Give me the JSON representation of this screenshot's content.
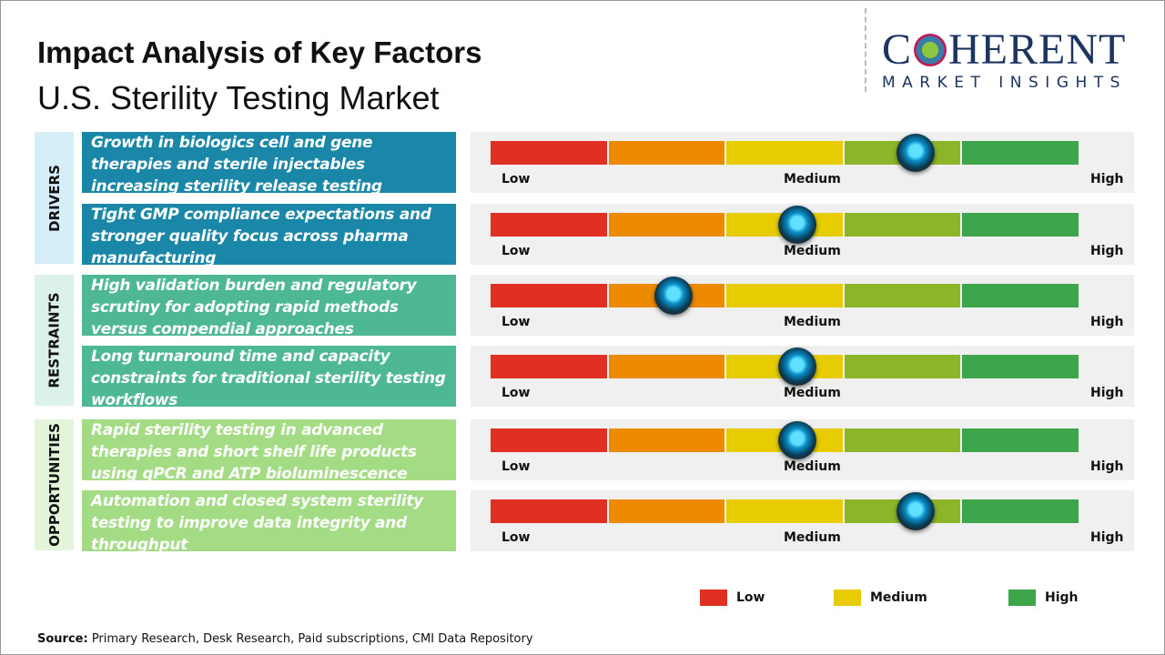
{
  "header": {
    "title": "Impact Analysis of Key Factors",
    "subtitle": "U.S. Sterility Testing Market"
  },
  "logo": {
    "word": "COHERENT",
    "tagline": "MARKET INSIGHTS"
  },
  "scale": {
    "low": "Low",
    "medium": "Medium",
    "high": "High",
    "colors": [
      "#e03024",
      "#ee8a00",
      "#e6cc00",
      "#8cb52a",
      "#3ea64a"
    ]
  },
  "categories": [
    {
      "label": "DRIVERS",
      "color": "#d5eef8",
      "box_color": "#1b87a8"
    },
    {
      "label": "RESTRAINTS",
      "color": "#dcf1ea",
      "box_color": "#4eb896"
    },
    {
      "label": "OPPORTUNITIES",
      "color": "#e4f4d9",
      "box_color": "#a3dc84"
    }
  ],
  "factors": [
    {
      "category": "DRIVERS",
      "text": "Growth in biologics cell and gene therapies and sterile injectables increasing sterility release testing demand",
      "impact": 0.72
    },
    {
      "category": "DRIVERS",
      "text": "Tight GMP compliance expectations and stronger quality focus across pharma manufacturing",
      "impact": 0.52
    },
    {
      "category": "RESTRAINTS",
      "text": "High validation burden and regulatory scrutiny for adopting rapid methods versus compendial approaches",
      "impact": 0.31
    },
    {
      "category": "RESTRAINTS",
      "text": "Long turnaround time and capacity constraints for traditional sterility testing workflows",
      "impact": 0.52
    },
    {
      "category": "OPPORTUNITIES",
      "text": "Rapid sterility testing in advanced therapies and short shelf life products using qPCR and ATP bioluminescence",
      "impact": 0.52
    },
    {
      "category": "OPPORTUNITIES",
      "text": "Automation and closed system sterility testing to improve data integrity and throughput",
      "impact": 0.72
    }
  ],
  "legend": [
    {
      "label": "Low",
      "color": "#e03024"
    },
    {
      "label": "Medium",
      "color": "#e6cc00"
    },
    {
      "label": "High",
      "color": "#3ea64a"
    }
  ],
  "source": {
    "label": "Source:",
    "text": " Primary Research, Desk Research, Paid subscriptions, CMI Data Repository"
  }
}
